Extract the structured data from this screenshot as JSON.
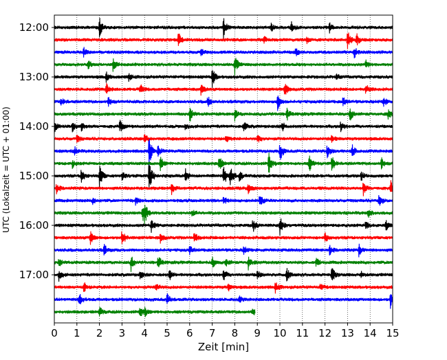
{
  "chart_data": {
    "type": "line",
    "subtype": "helicorder",
    "title": "",
    "xlabel": "Zeit  [min]",
    "ylabel": "UTC (Lokalzeit = UTC + 01:00)",
    "xlim": [
      0,
      15
    ],
    "x_ticks": [
      0,
      1,
      2,
      3,
      4,
      5,
      6,
      7,
      8,
      9,
      10,
      11,
      12,
      13,
      14,
      15
    ],
    "x_tick_labels": [
      "0",
      "1",
      "2",
      "3",
      "4",
      "5",
      "6",
      "7",
      "8",
      "9",
      "10",
      "11",
      "12",
      "13",
      "14",
      "15"
    ],
    "y_tick_labels": [
      "12:00",
      "13:00",
      "14:00",
      "15:00",
      "16:00",
      "17:00"
    ],
    "grid": "vertical dotted lines at each minute",
    "row_interval_minutes": 15,
    "start_time": "12:00",
    "colors_cycle": [
      "#000000",
      "#ff0000",
      "#0000ff",
      "#008000"
    ],
    "rows": [
      {
        "time": "12:00",
        "color": "#000000",
        "events": [
          [
            2.0,
            1.0
          ],
          [
            7.5,
            1.0
          ],
          [
            9.6,
            0.5
          ],
          [
            10.5,
            0.6
          ],
          [
            12.2,
            0.5
          ]
        ]
      },
      {
        "time": "12:15",
        "color": "#ff0000",
        "events": [
          [
            5.5,
            1.0
          ],
          [
            13.0,
            1.0
          ],
          [
            13.4,
            0.6
          ],
          [
            9.3,
            0.4
          ],
          [
            11.2,
            0.3
          ]
        ]
      },
      {
        "time": "12:30",
        "color": "#0000ff",
        "events": [
          [
            1.3,
            0.5
          ],
          [
            6.5,
            0.4
          ],
          [
            10.7,
            0.4
          ],
          [
            13.3,
            0.6
          ]
        ]
      },
      {
        "time": "12:45",
        "color": "#008000",
        "events": [
          [
            1.5,
            0.4
          ],
          [
            2.6,
            0.6
          ],
          [
            8.0,
            1.0
          ],
          [
            13.8,
            0.4
          ]
        ]
      },
      {
        "time": "13:00",
        "color": "#000000",
        "events": [
          [
            2.3,
            0.5
          ],
          [
            3.3,
            0.4
          ],
          [
            7.0,
            1.0
          ],
          [
            12.5,
            0.3
          ]
        ]
      },
      {
        "time": "13:15",
        "color": "#ff0000",
        "events": [
          [
            2.3,
            0.6
          ],
          [
            3.8,
            0.6
          ],
          [
            6.5,
            0.6
          ],
          [
            10.2,
            0.8
          ],
          [
            13.8,
            0.6
          ]
        ]
      },
      {
        "time": "13:30",
        "color": "#0000ff",
        "events": [
          [
            0.3,
            0.4
          ],
          [
            2.4,
            0.5
          ],
          [
            6.8,
            0.6
          ],
          [
            9.9,
            0.8
          ],
          [
            12.8,
            0.5
          ],
          [
            14.6,
            0.5
          ]
        ]
      },
      {
        "time": "13:45",
        "color": "#008000",
        "events": [
          [
            6.0,
            0.8
          ],
          [
            8.0,
            0.6
          ],
          [
            10.3,
            0.7
          ],
          [
            13.1,
            0.7
          ],
          [
            14.8,
            0.5
          ]
        ]
      },
      {
        "time": "14:00",
        "color": "#000000",
        "events": [
          [
            0.0,
            0.6
          ],
          [
            0.8,
            0.6
          ],
          [
            1.2,
            0.5
          ],
          [
            2.9,
            0.7
          ],
          [
            5.8,
            0.4
          ],
          [
            8.4,
            0.5
          ],
          [
            10.1,
            0.5
          ],
          [
            12.7,
            0.6
          ]
        ]
      },
      {
        "time": "14:15",
        "color": "#ff0000",
        "events": [
          [
            1.0,
            0.4
          ],
          [
            4.0,
            0.5
          ],
          [
            7.6,
            0.4
          ],
          [
            9.0,
            0.5
          ],
          [
            12.3,
            0.4
          ]
        ]
      },
      {
        "time": "14:30",
        "color": "#0000ff",
        "events": [
          [
            0.9,
            0.4
          ],
          [
            4.2,
            1.6
          ],
          [
            4.6,
            0.6
          ],
          [
            10.0,
            1.0
          ],
          [
            12.1,
            0.8
          ],
          [
            13.2,
            0.7
          ]
        ]
      },
      {
        "time": "14:45",
        "color": "#008000",
        "events": [
          [
            0.8,
            0.4
          ],
          [
            4.7,
            0.8
          ],
          [
            7.3,
            0.9
          ],
          [
            9.5,
            1.2
          ],
          [
            11.3,
            0.9
          ],
          [
            12.3,
            0.8
          ],
          [
            14.5,
            0.6
          ]
        ]
      },
      {
        "time": "15:00",
        "color": "#000000",
        "events": [
          [
            1.2,
            0.8
          ],
          [
            2.0,
            1.4
          ],
          [
            3.0,
            0.5
          ],
          [
            4.2,
            2.0
          ],
          [
            5.8,
            0.8
          ],
          [
            7.5,
            1.2
          ],
          [
            7.8,
            1.2
          ],
          [
            8.2,
            0.6
          ],
          [
            13.6,
            0.5
          ]
        ]
      },
      {
        "time": "15:15",
        "color": "#ff0000",
        "events": [
          [
            0.1,
            0.5
          ],
          [
            5.2,
            0.6
          ],
          [
            8.6,
            0.5
          ],
          [
            13.7,
            0.7
          ],
          [
            14.9,
            0.8
          ]
        ]
      },
      {
        "time": "15:30",
        "color": "#0000ff",
        "events": [
          [
            1.7,
            0.3
          ],
          [
            3.6,
            0.4
          ],
          [
            7.5,
            0.5
          ],
          [
            9.1,
            0.7
          ],
          [
            14.4,
            0.8
          ]
        ]
      },
      {
        "time": "15:45",
        "color": "#008000",
        "events": [
          [
            3.9,
            1.0
          ],
          [
            4.0,
            1.0
          ],
          [
            6.1,
            0.4
          ],
          [
            13.9,
            0.5
          ]
        ]
      },
      {
        "time": "16:00",
        "color": "#000000",
        "events": [
          [
            4.3,
            0.7
          ],
          [
            8.8,
            0.7
          ],
          [
            10.0,
            1.0
          ],
          [
            13.8,
            0.5
          ],
          [
            14.7,
            0.5
          ]
        ]
      },
      {
        "time": "16:15",
        "color": "#ff0000",
        "events": [
          [
            1.6,
            0.8
          ],
          [
            3.0,
            1.0
          ],
          [
            4.7,
            0.5
          ],
          [
            6.2,
            0.6
          ],
          [
            12.0,
            0.5
          ]
        ]
      },
      {
        "time": "16:30",
        "color": "#0000ff",
        "events": [
          [
            2.2,
            0.6
          ],
          [
            6.0,
            0.4
          ],
          [
            8.4,
            0.4
          ],
          [
            12.2,
            0.5
          ],
          [
            13.5,
            0.6
          ]
        ]
      },
      {
        "time": "16:45",
        "color": "#008000",
        "events": [
          [
            0.2,
            0.4
          ],
          [
            3.4,
            0.8
          ],
          [
            4.6,
            0.8
          ],
          [
            7.0,
            0.6
          ],
          [
            7.6,
            0.5
          ],
          [
            8.6,
            0.7
          ],
          [
            11.6,
            0.5
          ]
        ]
      },
      {
        "time": "17:00",
        "color": "#000000",
        "events": [
          [
            0.2,
            0.6
          ],
          [
            3.8,
            0.5
          ],
          [
            5.1,
            0.6
          ],
          [
            7.5,
            0.6
          ],
          [
            9.0,
            0.5
          ],
          [
            10.3,
            0.7
          ],
          [
            12.3,
            0.8
          ],
          [
            13.6,
            0.4
          ]
        ]
      },
      {
        "time": "17:15",
        "color": "#ff0000",
        "events": [
          [
            1.3,
            0.6
          ],
          [
            4.5,
            0.4
          ],
          [
            7.7,
            0.4
          ],
          [
            9.8,
            0.6
          ],
          [
            11.8,
            0.4
          ]
        ]
      },
      {
        "time": "17:30",
        "color": "#0000ff",
        "events": [
          [
            1.1,
            0.8
          ],
          [
            5.0,
            0.6
          ],
          [
            8.2,
            0.3
          ],
          [
            14.9,
            0.9
          ]
        ]
      },
      {
        "time": "17:45",
        "color": "#008000",
        "xmax": 8.9,
        "events": [
          [
            2.0,
            0.5
          ],
          [
            3.8,
            0.6
          ],
          [
            4.0,
            0.4
          ],
          [
            8.8,
            0.4
          ]
        ]
      }
    ]
  }
}
